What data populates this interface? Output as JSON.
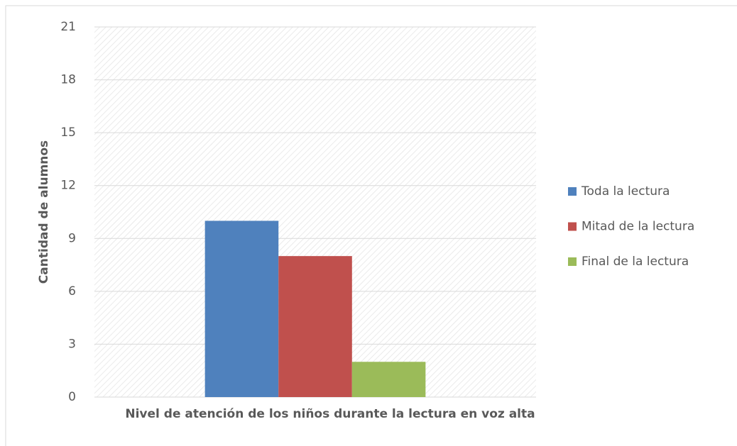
{
  "chart_data": {
    "type": "bar",
    "x_label": "Nivel de atención de los niños durante la lectura en voz alta",
    "y_label": "Cantidad de alumnos",
    "categories": [
      null
    ],
    "series": [
      {
        "name": "Toda la lectura",
        "color": "#4f81bd",
        "values": [
          10
        ]
      },
      {
        "name": "Mitad de la lectura",
        "color": "#c0504d",
        "values": [
          8
        ]
      },
      {
        "name": "Final de la lectura",
        "color": "#9bbb59",
        "values": [
          2
        ]
      }
    ],
    "ylim": [
      0,
      21
    ],
    "yticks": [
      0,
      3,
      6,
      9,
      12,
      15,
      18,
      21
    ],
    "grid": true,
    "legend": "right"
  }
}
